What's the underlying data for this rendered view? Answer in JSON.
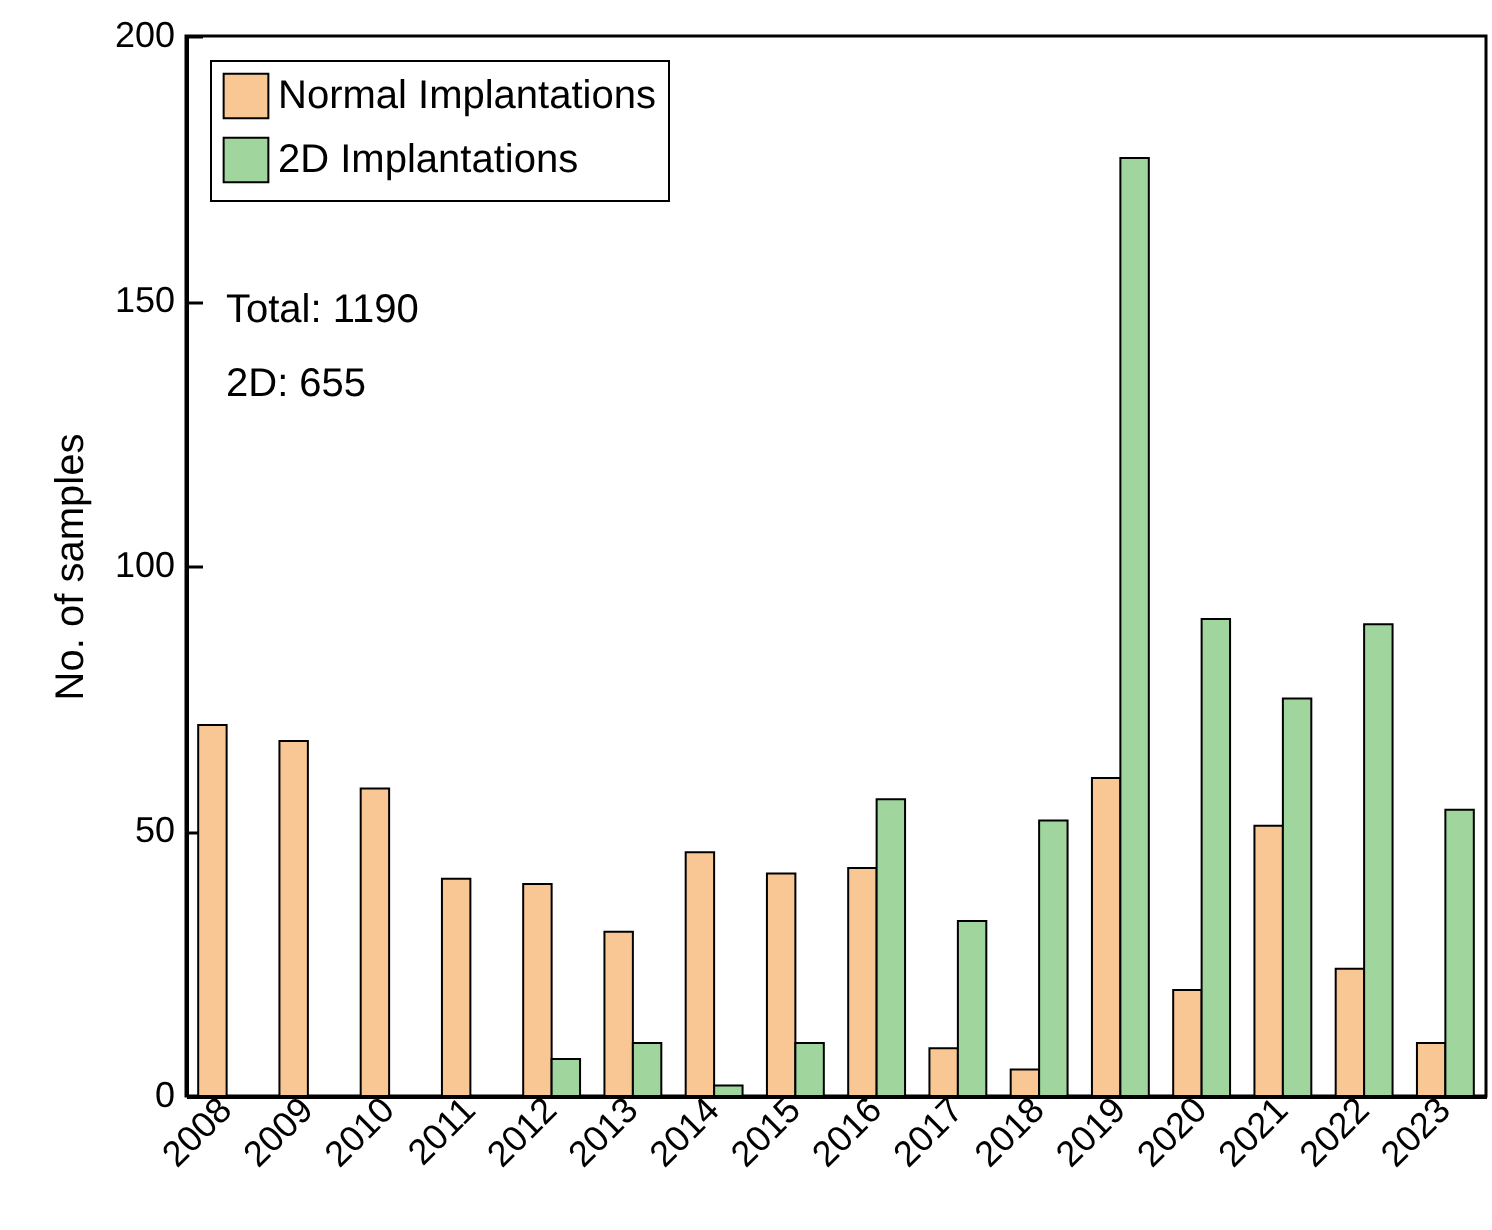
{
  "chart_data": {
    "type": "bar",
    "ylabel": "No. of samples",
    "categories": [
      "2008",
      "2009",
      "2010",
      "2011",
      "2012",
      "2013",
      "2014",
      "2015",
      "2016",
      "2017",
      "2018",
      "2019",
      "2020",
      "2021",
      "2022",
      "2023"
    ],
    "series": [
      {
        "name": "Normal Implantations",
        "color": "#f9c794",
        "values": [
          70,
          67,
          58,
          41,
          40,
          31,
          46,
          42,
          43,
          9,
          5,
          60,
          20,
          51,
          24,
          10
        ]
      },
      {
        "name": "2D Implantations",
        "color": "#a0d69e",
        "values": [
          null,
          null,
          null,
          null,
          7,
          10,
          2,
          10,
          56,
          33,
          52,
          177,
          90,
          75,
          89,
          54
        ]
      }
    ],
    "ylim": [
      0,
      200
    ],
    "yticks": [
      0,
      50,
      100,
      150,
      200
    ],
    "grid": false,
    "legend": "top left",
    "annotations": [
      "Total: 1190",
      "2D: 655"
    ]
  }
}
